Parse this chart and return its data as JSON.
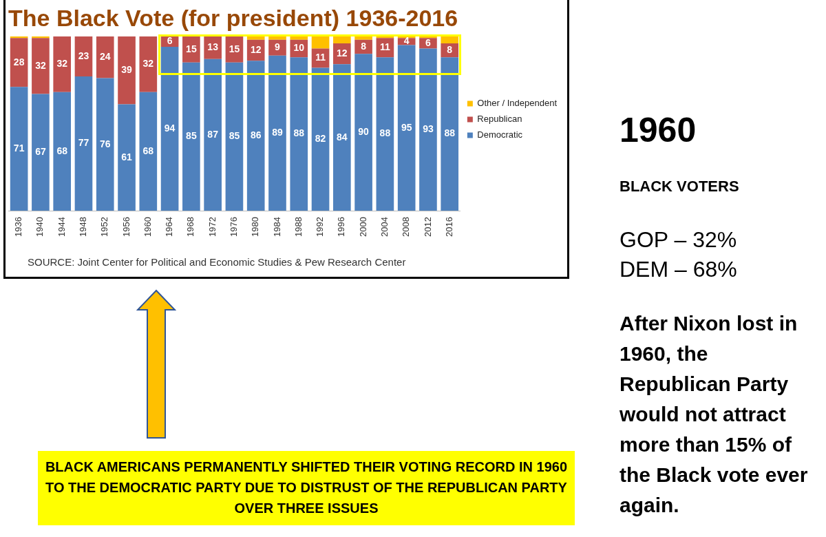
{
  "chart_data": {
    "type": "bar",
    "title": "The Black Vote (for president) 1936-2016",
    "stacked": true,
    "legend": "right",
    "grid": false,
    "tick_labels": "x",
    "ylim": [
      0,
      100
    ],
    "categories": [
      "1936",
      "1940",
      "1944",
      "1948",
      "1952",
      "1956",
      "1960",
      "1964",
      "1968",
      "1972",
      "1976",
      "1980",
      "1984",
      "1988",
      "1992",
      "1996",
      "2000",
      "2004",
      "2008",
      "2012",
      "2016"
    ],
    "series": [
      {
        "name": "Democratic",
        "color": "#4f81bd",
        "values": [
          71,
          67,
          68,
          77,
          76,
          61,
          68,
          94,
          85,
          87,
          85,
          86,
          89,
          88,
          82,
          84,
          90,
          88,
          95,
          93,
          88
        ],
        "value_labels": [
          "71",
          "67",
          "68",
          "77",
          "76",
          "61",
          "68",
          "94",
          "85",
          "87",
          "85",
          "86",
          "89",
          "88",
          "82",
          "84",
          "90",
          "88",
          "95",
          "93",
          "88"
        ]
      },
      {
        "name": "Republican",
        "color": "#c0504d",
        "values": [
          28,
          32,
          32,
          23,
          24,
          39,
          32,
          6,
          15,
          13,
          15,
          12,
          9,
          10,
          11,
          12,
          8,
          11,
          4,
          6,
          8
        ],
        "value_labels": [
          "28",
          "32",
          "32",
          "23",
          "24",
          "39",
          "32",
          "6",
          "15",
          "13",
          "15",
          "12",
          "9",
          "10",
          "11",
          "12",
          "8",
          "11",
          "4",
          "6",
          "8"
        ]
      },
      {
        "name": "Other / Independent",
        "color": "#ffc000",
        "values": [
          1,
          1,
          0,
          0,
          0,
          0,
          0,
          0,
          0,
          0,
          0,
          2,
          2,
          2,
          7,
          4,
          2,
          1,
          1,
          1,
          4
        ],
        "value_labels": [
          null,
          null,
          null,
          null,
          null,
          null,
          null,
          null,
          null,
          null,
          null,
          null,
          null,
          null,
          null,
          null,
          null,
          null,
          null,
          null,
          null
        ]
      }
    ],
    "annotations": [
      "SOURCE: Joint Center for Political and Economic Studies & Pew Research Center",
      "1960",
      "BLACK VOTERS",
      "GOP – 32%",
      "DEM – 68%",
      "After Nixon lost in 1960, the Republican Party would not attract more than 15% of the Black vote ever again.",
      "BLACK AMERICANS PERMANENTLY SHIFTED THEIR VOTING RECORD IN 1960 TO THE DEMOCRATIC PARTY DUE TO DISTRUST OF THE REPUBLICAN PARTY OVER THREE ISSUES"
    ]
  }
}
